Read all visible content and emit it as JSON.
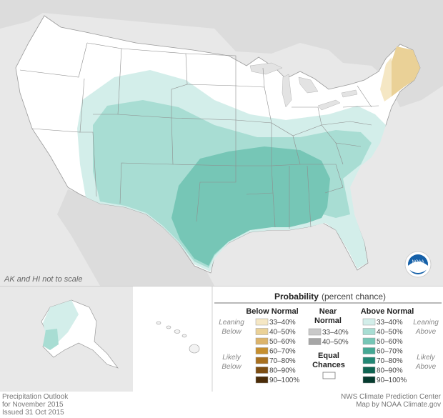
{
  "map_note": "AK and HI not to scale",
  "legend": {
    "title": "Probability",
    "title_suffix": "(percent chance)",
    "below": {
      "header": "Below Normal",
      "leaning": [
        "Leaning",
        "Below"
      ],
      "likely": [
        "Likely",
        "Below"
      ],
      "colors": [
        "#f5e7c4",
        "#ead197",
        "#dcb46b",
        "#c68f2f",
        "#a8701f",
        "#7c4d12",
        "#4b2c08"
      ],
      "ranges": [
        "33–40%",
        "40–50%",
        "50–60%",
        "60–70%",
        "70–80%",
        "80–90%",
        "90–100%"
      ]
    },
    "near": {
      "header": [
        "Near",
        "Normal"
      ],
      "colors": [
        "#c9c9c9",
        "#a6a6a6"
      ],
      "ranges": [
        "33–40%",
        "40–50%"
      ]
    },
    "equal": {
      "label": [
        "Equal",
        "Chances"
      ],
      "color": "#ffffff"
    },
    "above": {
      "header": "Above Normal",
      "leaning": [
        "Leaning",
        "Above"
      ],
      "likely": [
        "Likely",
        "Above"
      ],
      "colors": [
        "#d3eeea",
        "#a8ddd3",
        "#76c6b6",
        "#45a894",
        "#238774",
        "#106452",
        "#063b2f"
      ],
      "ranges": [
        "33–40%",
        "40–50%",
        "50–60%",
        "60–70%",
        "70–80%",
        "80–90%",
        "90–100%"
      ]
    }
  },
  "footer": {
    "left": [
      "Precipitation Outlook",
      "for November 2015",
      "Issued 31 Oct 2015"
    ],
    "right": [
      "NWS Climate Prediction Center",
      "Map by NOAA Climate.gov"
    ]
  },
  "logo_text": "NOAA"
}
